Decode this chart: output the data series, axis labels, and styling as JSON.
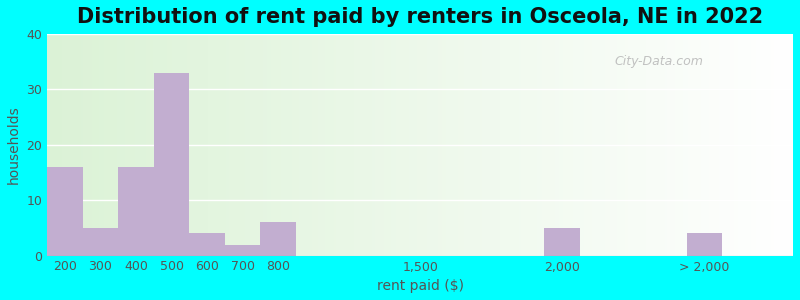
{
  "title": "Distribution of rent paid by renters in Osceola, NE in 2022",
  "xlabel": "rent paid ($)",
  "ylabel": "households",
  "background_color": "#00FFFF",
  "bar_color": "#c2aed0",
  "categories": [
    "200",
    "300",
    "400",
    "500",
    "600",
    "700",
    "800",
    "1,500",
    "2,000",
    "> 2,000"
  ],
  "values": [
    16,
    5,
    16,
    33,
    4,
    2,
    6,
    0,
    5,
    4
  ],
  "ylim": [
    0,
    40
  ],
  "yticks": [
    0,
    10,
    20,
    30,
    40
  ],
  "title_fontsize": 15,
  "axis_label_fontsize": 10,
  "tick_fontsize": 9,
  "watermark_text": "City-Data.com",
  "bar_positions": [
    0,
    1,
    2,
    3,
    4,
    5,
    6,
    10,
    14,
    18
  ],
  "bar_width": 1.0,
  "xlim_left": -0.5,
  "xlim_right": 20.5
}
